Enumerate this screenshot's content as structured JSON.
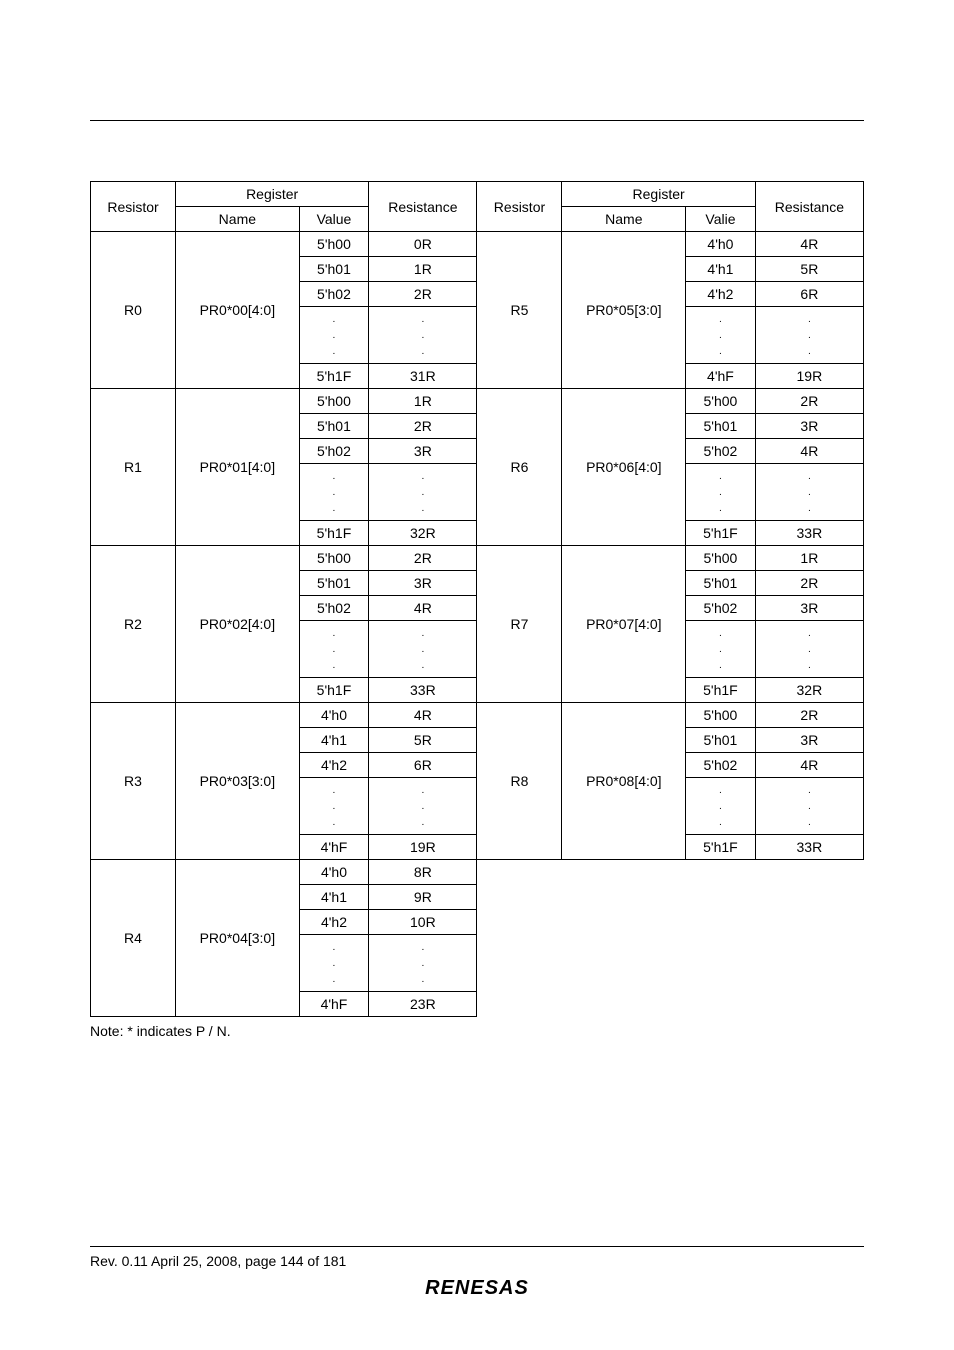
{
  "headers": {
    "resistor": "Resistor",
    "register": "Register",
    "name": "Name",
    "value": "Value",
    "valie": "Valie",
    "resistance": "Resistance"
  },
  "vdots": "⋮",
  "left": [
    {
      "resistor": "R0",
      "reg": "PR0*00[4:0]",
      "rows": [
        {
          "v": "5'h00",
          "r": "0R"
        },
        {
          "v": "5'h01",
          "r": "1R"
        },
        {
          "v": "5'h02",
          "r": "2R"
        },
        {
          "v": "⋮",
          "r": "⋮"
        },
        {
          "v": "5'h1F",
          "r": "31R"
        }
      ]
    },
    {
      "resistor": "R1",
      "reg": "PR0*01[4:0]",
      "rows": [
        {
          "v": "5'h00",
          "r": "1R"
        },
        {
          "v": "5'h01",
          "r": "2R"
        },
        {
          "v": "5'h02",
          "r": "3R"
        },
        {
          "v": "⋮",
          "r": "⋮"
        },
        {
          "v": "5'h1F",
          "r": "32R"
        }
      ]
    },
    {
      "resistor": "R2",
      "reg": "PR0*02[4:0]",
      "rows": [
        {
          "v": "5'h00",
          "r": "2R"
        },
        {
          "v": "5'h01",
          "r": "3R"
        },
        {
          "v": "5'h02",
          "r": "4R"
        },
        {
          "v": "⋮",
          "r": "⋮"
        },
        {
          "v": "5'h1F",
          "r": "33R"
        }
      ]
    },
    {
      "resistor": "R3",
      "reg": "PR0*03[3:0]",
      "rows": [
        {
          "v": "4'h0",
          "r": "4R"
        },
        {
          "v": "4'h1",
          "r": "5R"
        },
        {
          "v": "4'h2",
          "r": "6R"
        },
        {
          "v": "⋮",
          "r": "⋮"
        },
        {
          "v": "4'hF",
          "r": "19R"
        }
      ]
    },
    {
      "resistor": "R4",
      "reg": "PR0*04[3:0]",
      "rows": [
        {
          "v": "4'h0",
          "r": "8R"
        },
        {
          "v": "4'h1",
          "r": "9R"
        },
        {
          "v": "4'h2",
          "r": "10R"
        },
        {
          "v": "⋮",
          "r": "⋮"
        },
        {
          "v": "4'hF",
          "r": "23R"
        }
      ]
    }
  ],
  "right": [
    {
      "resistor": "R5",
      "reg": "PR0*05[3:0]",
      "rows": [
        {
          "v": "4'h0",
          "r": "4R"
        },
        {
          "v": "4'h1",
          "r": "5R"
        },
        {
          "v": "4'h2",
          "r": "6R"
        },
        {
          "v": "⋮",
          "r": "⋮"
        },
        {
          "v": "4'hF",
          "r": "19R"
        }
      ]
    },
    {
      "resistor": "R6",
      "reg": "PR0*06[4:0]",
      "rows": [
        {
          "v": "5'h00",
          "r": "2R"
        },
        {
          "v": "5'h01",
          "r": "3R"
        },
        {
          "v": "5'h02",
          "r": "4R"
        },
        {
          "v": "⋮",
          "r": "⋮"
        },
        {
          "v": "5'h1F",
          "r": "33R"
        }
      ]
    },
    {
      "resistor": "R7",
      "reg": "PR0*07[4:0]",
      "rows": [
        {
          "v": "5'h00",
          "r": "1R"
        },
        {
          "v": "5'h01",
          "r": "2R"
        },
        {
          "v": "5'h02",
          "r": "3R"
        },
        {
          "v": "⋮",
          "r": "⋮"
        },
        {
          "v": "5'h1F",
          "r": "32R"
        }
      ]
    },
    {
      "resistor": "R8",
      "reg": "PR0*08[4:0]",
      "rows": [
        {
          "v": "5'h00",
          "r": "2R"
        },
        {
          "v": "5'h01",
          "r": "3R"
        },
        {
          "v": "5'h02",
          "r": "4R"
        },
        {
          "v": "⋮",
          "r": "⋮"
        },
        {
          "v": "5'h1F",
          "r": "33R"
        }
      ]
    }
  ],
  "note": "Note: * indicates P / N.",
  "footer": "Rev. 0.11 April 25, 2008, page 144 of 181",
  "logo": "RENESAS",
  "colors": {
    "text": "#000000",
    "background": "#ffffff",
    "border": "#000000"
  },
  "col_widths": {
    "resistor": "11%",
    "name": "16%",
    "value": "9%",
    "resistance": "14%"
  }
}
